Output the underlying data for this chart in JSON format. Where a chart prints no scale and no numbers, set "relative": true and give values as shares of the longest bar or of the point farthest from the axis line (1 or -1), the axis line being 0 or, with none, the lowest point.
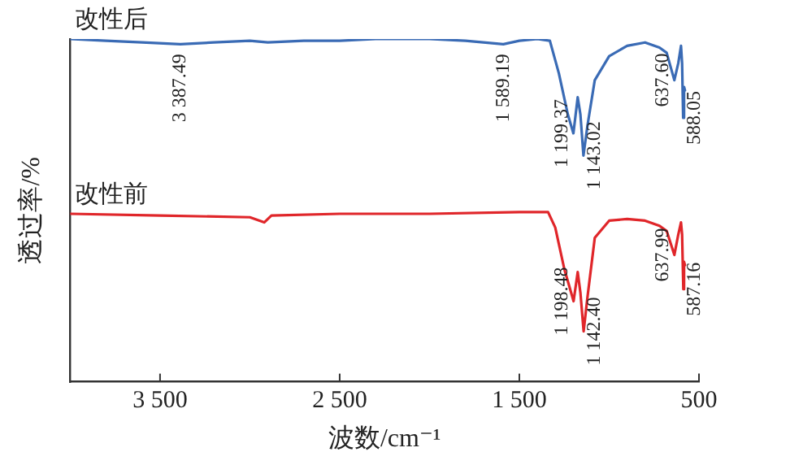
{
  "chart_data": {
    "type": "line",
    "relative": true,
    "xlabel": "波数/cm⁻¹",
    "ylabel": "透过率/%",
    "xlim": [
      4000,
      500
    ],
    "xticks": [
      {
        "value": 3500,
        "label": "3 500"
      },
      {
        "value": 2500,
        "label": "2 500"
      },
      {
        "value": 1500,
        "label": "1 500"
      },
      {
        "value": 500,
        "label": "500"
      }
    ],
    "grid": false,
    "legend": false,
    "marker": "none",
    "line_style": "solid",
    "series": [
      {
        "name": "改性后",
        "color": "#3a6bb5",
        "x": [
          4000,
          3800,
          3600,
          3387,
          3200,
          3000,
          2900,
          2700,
          2500,
          2300,
          2000,
          1800,
          1589,
          1500,
          1400,
          1330,
          1280,
          1230,
          1199,
          1175,
          1160,
          1143,
          1120,
          1080,
          1000,
          900,
          800,
          720,
          680,
          637,
          615,
          600,
          594,
          588,
          583,
          578
        ],
        "values": [
          1.0,
          0.995,
          0.99,
          0.985,
          0.99,
          0.995,
          0.99,
          0.995,
          0.995,
          1.0,
          1.0,
          0.995,
          0.985,
          0.995,
          1.0,
          0.995,
          0.9,
          0.78,
          0.725,
          0.83,
          0.78,
          0.66,
          0.75,
          0.88,
          0.95,
          0.98,
          0.99,
          0.975,
          0.96,
          0.88,
          0.93,
          0.98,
          0.93,
          0.77,
          0.86,
          0.85
        ]
      },
      {
        "name": "改性前",
        "color": "#e0262a",
        "x": [
          4000,
          3500,
          3000,
          2920,
          2880,
          2500,
          2000,
          1500,
          1340,
          1300,
          1250,
          1198,
          1175,
          1160,
          1142,
          1120,
          1080,
          1000,
          900,
          800,
          720,
          680,
          637,
          615,
          600,
          594,
          587,
          583,
          578
        ],
        "values": [
          0.49,
          0.485,
          0.48,
          0.465,
          0.485,
          0.49,
          0.49,
          0.495,
          0.495,
          0.45,
          0.33,
          0.235,
          0.32,
          0.26,
          0.147,
          0.25,
          0.42,
          0.47,
          0.475,
          0.47,
          0.455,
          0.44,
          0.37,
          0.43,
          0.465,
          0.43,
          0.27,
          0.35,
          0.34
        ]
      }
    ],
    "annotations": [
      {
        "text": "3 387.49",
        "x": 3387.49,
        "y": 0.985
      },
      {
        "text": "1 589.19",
        "x": 1589.19,
        "y": 0.985
      },
      {
        "text": "1 199.37",
        "x": 1199.37,
        "y": 0.725
      },
      {
        "text": "1 143.02",
        "x": 1143.02,
        "y": 0.66
      },
      {
        "text": "637.60",
        "x": 637.6,
        "y": 0.88
      },
      {
        "text": "588.05",
        "x": 588.05,
        "y": 0.77
      },
      {
        "text": "1 198.48",
        "x": 1198.48,
        "y": 0.235
      },
      {
        "text": "1 142.40",
        "x": 1142.4,
        "y": 0.147
      },
      {
        "text": "637.99",
        "x": 637.99,
        "y": 0.37
      },
      {
        "text": "587.16",
        "x": 587.16,
        "y": 0.27
      }
    ]
  }
}
